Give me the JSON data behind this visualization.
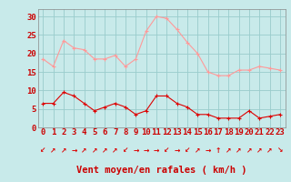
{
  "hours": [
    0,
    1,
    2,
    3,
    4,
    5,
    6,
    7,
    8,
    9,
    10,
    11,
    12,
    13,
    14,
    15,
    16,
    17,
    18,
    19,
    20,
    21,
    22,
    23
  ],
  "rafales": [
    18.5,
    16.5,
    23.5,
    21.5,
    21.0,
    18.5,
    18.5,
    19.5,
    16.5,
    18.5,
    26.0,
    30.0,
    29.5,
    26.5,
    23.0,
    20.0,
    15.0,
    14.0,
    14.0,
    15.5,
    15.5,
    16.5,
    16.0,
    15.5
  ],
  "vent_moyen": [
    6.5,
    6.5,
    9.5,
    8.5,
    6.5,
    4.5,
    5.5,
    6.5,
    5.5,
    3.5,
    4.5,
    8.5,
    8.5,
    6.5,
    5.5,
    3.5,
    3.5,
    2.5,
    2.5,
    2.5,
    4.5,
    2.5,
    3.0,
    3.5
  ],
  "arrow_symbols": [
    "↙",
    "↗",
    "↗",
    "→",
    "↗",
    "↗",
    "↗",
    "↗",
    "↙",
    "→",
    "→",
    "→",
    "↙",
    "→",
    "↙",
    "↗",
    "→",
    "↑",
    "↗",
    "↗",
    "↗",
    "↗",
    "↗",
    "↘"
  ],
  "rafales_color": "#ff9999",
  "vent_moyen_color": "#dd0000",
  "background_color": "#c8eaea",
  "grid_color": "#99cccc",
  "xlabel": "Vent moyen/en rafales ( km/h )",
  "xlabel_color": "#cc0000",
  "yticks": [
    0,
    5,
    10,
    15,
    20,
    25,
    30
  ],
  "ylim": [
    0,
    32
  ],
  "xlim": [
    -0.5,
    23.5
  ],
  "tick_fontsize": 6.5,
  "xlabel_fontsize": 7.5,
  "arrow_fontsize": 5.5
}
